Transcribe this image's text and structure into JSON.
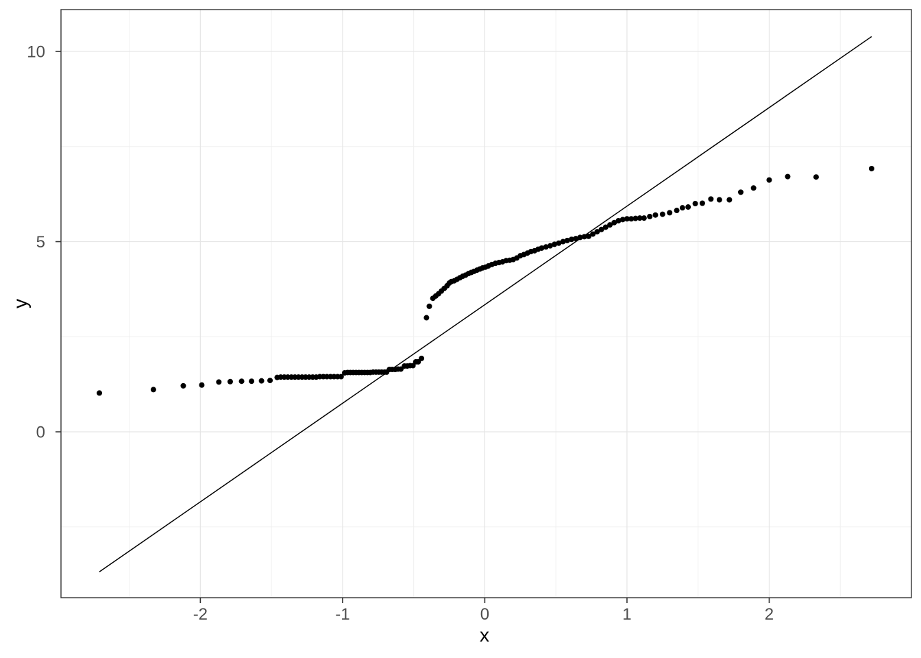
{
  "chart_data": {
    "type": "scatter",
    "title": "",
    "xlabel": "x",
    "ylabel": "y",
    "x_ticks": [
      "-2",
      "-1",
      "0",
      "1",
      "2"
    ],
    "x_tick_values": [
      -2,
      -1,
      0,
      1,
      2
    ],
    "y_ticks": [
      "0",
      "5",
      "10"
    ],
    "y_tick_values": [
      0,
      5,
      10
    ],
    "x_minor": [
      -2.5,
      -1.5,
      -0.5,
      0.5,
      1.5,
      2.5
    ],
    "y_minor": [
      -2.5,
      2.5,
      7.5
    ],
    "xlim": [
      -2.98,
      3.0
    ],
    "ylim": [
      -4.36,
      11.1
    ],
    "grid": "major-and-minor",
    "legend": false,
    "style": {
      "panel_bg": "#ffffff",
      "panel_border": "#333333",
      "grid_major": "#e5e5e5",
      "grid_minor": "#f0f0f0",
      "tick_color": "#333333",
      "tick_label_color": "#4d4d4d",
      "axis_title_color": "#000000",
      "point_color": "#000000",
      "point_radius": 4,
      "line_color": "#000000"
    },
    "reference_line": {
      "x1": -2.71,
      "y1": -3.68,
      "x2": 2.72,
      "y2": 10.39,
      "slope": 2.59,
      "intercept": 3.34
    },
    "points": [
      [
        -2.71,
        1.02
      ],
      [
        -2.33,
        1.11
      ],
      [
        -2.12,
        1.21
      ],
      [
        -1.99,
        1.23
      ],
      [
        -1.87,
        1.31
      ],
      [
        -1.79,
        1.32
      ],
      [
        -1.71,
        1.33
      ],
      [
        -1.64,
        1.33
      ],
      [
        -1.57,
        1.34
      ],
      [
        -1.51,
        1.35
      ],
      [
        -1.46,
        1.43
      ],
      [
        -1.435,
        1.44
      ],
      [
        -1.41,
        1.44
      ],
      [
        -1.385,
        1.44
      ],
      [
        -1.36,
        1.44
      ],
      [
        -1.335,
        1.44
      ],
      [
        -1.31,
        1.44
      ],
      [
        -1.285,
        1.44
      ],
      [
        -1.26,
        1.44
      ],
      [
        -1.235,
        1.44
      ],
      [
        -1.21,
        1.44
      ],
      [
        -1.185,
        1.44
      ],
      [
        -1.16,
        1.45
      ],
      [
        -1.135,
        1.45
      ],
      [
        -1.11,
        1.45
      ],
      [
        -1.085,
        1.45
      ],
      [
        -1.06,
        1.45
      ],
      [
        -1.035,
        1.45
      ],
      [
        -1.01,
        1.45
      ],
      [
        -0.985,
        1.55
      ],
      [
        -0.965,
        1.56
      ],
      [
        -0.945,
        1.56
      ],
      [
        -0.925,
        1.56
      ],
      [
        -0.905,
        1.56
      ],
      [
        -0.885,
        1.56
      ],
      [
        -0.865,
        1.56
      ],
      [
        -0.845,
        1.56
      ],
      [
        -0.825,
        1.56
      ],
      [
        -0.805,
        1.56
      ],
      [
        -0.785,
        1.57
      ],
      [
        -0.765,
        1.57
      ],
      [
        -0.745,
        1.57
      ],
      [
        -0.725,
        1.57
      ],
      [
        -0.705,
        1.57
      ],
      [
        -0.69,
        1.57
      ],
      [
        -0.67,
        1.64
      ],
      [
        -0.65,
        1.64
      ],
      [
        -0.63,
        1.64
      ],
      [
        -0.61,
        1.65
      ],
      [
        -0.59,
        1.65
      ],
      [
        -0.565,
        1.73
      ],
      [
        -0.545,
        1.73
      ],
      [
        -0.525,
        1.74
      ],
      [
        -0.505,
        1.74
      ],
      [
        -0.485,
        1.84
      ],
      [
        -0.468,
        1.84
      ],
      [
        -0.445,
        1.93
      ],
      [
        -0.41,
        3.0
      ],
      [
        -0.39,
        3.3
      ],
      [
        -0.365,
        3.51
      ],
      [
        -0.345,
        3.57
      ],
      [
        -0.325,
        3.63
      ],
      [
        -0.305,
        3.7
      ],
      [
        -0.285,
        3.77
      ],
      [
        -0.265,
        3.84
      ],
      [
        -0.25,
        3.91
      ],
      [
        -0.235,
        3.95
      ],
      [
        -0.215,
        3.97
      ],
      [
        -0.195,
        4.01
      ],
      [
        -0.175,
        4.05
      ],
      [
        -0.155,
        4.09
      ],
      [
        -0.135,
        4.12
      ],
      [
        -0.115,
        4.16
      ],
      [
        -0.095,
        4.19
      ],
      [
        -0.075,
        4.22
      ],
      [
        -0.055,
        4.25
      ],
      [
        -0.035,
        4.28
      ],
      [
        -0.015,
        4.31
      ],
      [
        0.005,
        4.33
      ],
      [
        0.025,
        4.36
      ],
      [
        0.05,
        4.4
      ],
      [
        0.075,
        4.43
      ],
      [
        0.1,
        4.45
      ],
      [
        0.125,
        4.47
      ],
      [
        0.15,
        4.5
      ],
      [
        0.175,
        4.51
      ],
      [
        0.2,
        4.53
      ],
      [
        0.225,
        4.57
      ],
      [
        0.25,
        4.63
      ],
      [
        0.275,
        4.66
      ],
      [
        0.3,
        4.7
      ],
      [
        0.325,
        4.74
      ],
      [
        0.35,
        4.76
      ],
      [
        0.375,
        4.8
      ],
      [
        0.4,
        4.83
      ],
      [
        0.43,
        4.86
      ],
      [
        0.46,
        4.89
      ],
      [
        0.49,
        4.93
      ],
      [
        0.52,
        4.96
      ],
      [
        0.55,
        5.0
      ],
      [
        0.58,
        5.03
      ],
      [
        0.61,
        5.06
      ],
      [
        0.64,
        5.08
      ],
      [
        0.67,
        5.11
      ],
      [
        0.7,
        5.13
      ],
      [
        0.73,
        5.14
      ],
      [
        0.76,
        5.2
      ],
      [
        0.79,
        5.26
      ],
      [
        0.82,
        5.32
      ],
      [
        0.85,
        5.38
      ],
      [
        0.88,
        5.44
      ],
      [
        0.91,
        5.5
      ],
      [
        0.94,
        5.55
      ],
      [
        0.97,
        5.58
      ],
      [
        1.0,
        5.6
      ],
      [
        1.03,
        5.6
      ],
      [
        1.06,
        5.61
      ],
      [
        1.09,
        5.62
      ],
      [
        1.12,
        5.62
      ],
      [
        1.16,
        5.66
      ],
      [
        1.2,
        5.7
      ],
      [
        1.25,
        5.72
      ],
      [
        1.3,
        5.76
      ],
      [
        1.35,
        5.82
      ],
      [
        1.39,
        5.89
      ],
      [
        1.43,
        5.91
      ],
      [
        1.48,
        6.0
      ],
      [
        1.53,
        6.01
      ],
      [
        1.59,
        6.12
      ],
      [
        1.65,
        6.1
      ],
      [
        1.72,
        6.1
      ],
      [
        1.8,
        6.3
      ],
      [
        1.89,
        6.41
      ],
      [
        2.0,
        6.62
      ],
      [
        2.13,
        6.71
      ],
      [
        2.33,
        6.7
      ],
      [
        2.72,
        6.92
      ]
    ]
  }
}
